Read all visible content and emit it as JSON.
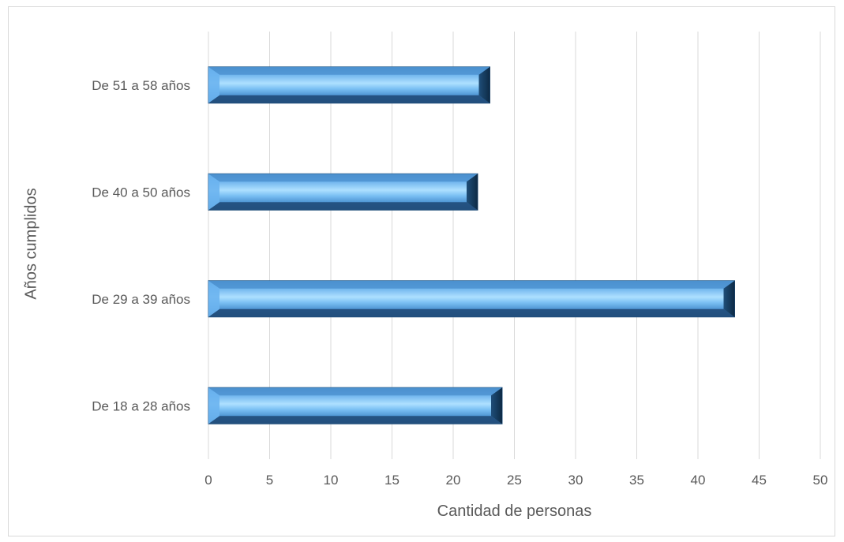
{
  "chart_data": {
    "type": "bar",
    "orientation": "horizontal",
    "categories": [
      "De 18 a 28 años",
      "De 29 a 39 años",
      "De 40 a 50 años",
      "De 51 a 58 años "
    ],
    "values": [
      24,
      43,
      22,
      23
    ],
    "xlabel": "Cantidad de personas",
    "ylabel": "Años cumplidos",
    "xlim": [
      0,
      50
    ],
    "xticks": [
      "0",
      "5",
      "10",
      "15",
      "20",
      "25",
      "30",
      "35",
      "40",
      "45",
      "50"
    ],
    "grid": "vertical",
    "legend": "none",
    "colors": {
      "bar_light": "#a9dcff",
      "bar_mid": "#5ba7e6",
      "bar_dark": "#1f4e79",
      "gridline": "#d9d9d9",
      "text": "#595959"
    }
  }
}
